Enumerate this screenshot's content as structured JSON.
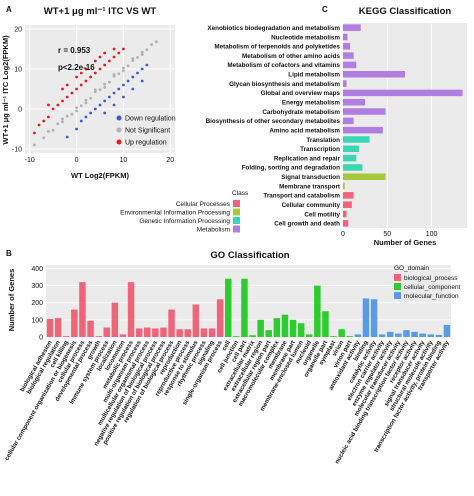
{
  "chart_data": [
    {
      "panel": "A",
      "type": "scatter",
      "title": "WT+1 μg ml⁻¹ ITC VS WT",
      "xlabel": "WT Log2(FPKM)",
      "ylabel": "WT+1 μg ml⁻¹ ITC Log2(FPKM)",
      "xlim": [
        -11,
        21
      ],
      "ylim": [
        -11,
        21
      ],
      "xticks": [
        "-10",
        "0",
        "10",
        "20"
      ],
      "yticks": [
        "-10",
        "0",
        "10",
        "20"
      ],
      "annotations": [
        "r = 0.953",
        "p<2.2e-16"
      ],
      "legend": [
        {
          "name": "Down regulation",
          "color": "#3b5bd6"
        },
        {
          "name": "Not Significant",
          "color": "#b0b0b0"
        },
        {
          "name": "Up regulation",
          "color": "#e02020"
        }
      ],
      "series": [
        {
          "name": "Not Significant",
          "color": "#b0b0b0",
          "points": [
            [
              -9,
              -9
            ],
            [
              -7,
              -7.2
            ],
            [
              -6,
              -5.6
            ],
            [
              -5,
              -5.3
            ],
            [
              -4,
              -3.7
            ],
            [
              -3,
              -3.2
            ],
            [
              -2,
              -1.8
            ],
            [
              -1,
              -1.3
            ],
            [
              0,
              0.3
            ],
            [
              1,
              0.8
            ],
            [
              2,
              2.2
            ],
            [
              3,
              2.7
            ],
            [
              4,
              4.3
            ],
            [
              5,
              4.8
            ],
            [
              6,
              6.2
            ],
            [
              7,
              6.7
            ],
            [
              8,
              8.2
            ],
            [
              9,
              8.8
            ],
            [
              10,
              10.2
            ],
            [
              11,
              10.8
            ],
            [
              12,
              12.1
            ],
            [
              13,
              12.9
            ],
            [
              14,
              14.2
            ],
            [
              15,
              14.8
            ],
            [
              16,
              16.1
            ],
            [
              17,
              16.8
            ],
            [
              -3,
              -2.5
            ],
            [
              0,
              -0.5
            ],
            [
              2,
              1.5
            ],
            [
              4,
              4.8
            ],
            [
              6,
              5.4
            ],
            [
              8,
              8.6
            ],
            [
              10,
              9.5
            ],
            [
              12,
              12.6
            ],
            [
              14,
              13.6
            ]
          ]
        },
        {
          "name": "Up regulation",
          "color": "#e02020",
          "points": [
            [
              -9,
              -6
            ],
            [
              -8,
              -4
            ],
            [
              -7,
              -3
            ],
            [
              -6,
              -2
            ],
            [
              -5,
              0
            ],
            [
              -4,
              1
            ],
            [
              -3,
              2
            ],
            [
              -2,
              3
            ],
            [
              -1,
              4
            ],
            [
              0,
              5
            ],
            [
              1,
              6
            ],
            [
              2,
              7
            ],
            [
              3,
              8
            ],
            [
              4,
              9
            ],
            [
              5,
              10
            ],
            [
              6,
              11
            ],
            [
              7,
              12
            ],
            [
              8,
              13
            ],
            [
              9,
              14
            ],
            [
              10,
              15
            ],
            [
              -2,
              6
            ],
            [
              0,
              8
            ],
            [
              2,
              10
            ],
            [
              4,
              12
            ],
            [
              6,
              14
            ],
            [
              -6,
              1
            ],
            [
              -3,
              5
            ],
            [
              1,
              9
            ],
            [
              5,
              13
            ],
            [
              8,
              15
            ]
          ]
        },
        {
          "name": "Down regulation",
          "color": "#3b5bd6",
          "points": [
            [
              -2,
              -7
            ],
            [
              0,
              -5
            ],
            [
              1,
              -3
            ],
            [
              2,
              -2
            ],
            [
              3,
              -1
            ],
            [
              4,
              0
            ],
            [
              5,
              1
            ],
            [
              6,
              2
            ],
            [
              7,
              3
            ],
            [
              8,
              4
            ],
            [
              9,
              5
            ],
            [
              10,
              6
            ],
            [
              11,
              7
            ],
            [
              12,
              8
            ],
            [
              13,
              9
            ],
            [
              14,
              10
            ],
            [
              15,
              11
            ],
            [
              6,
              -1
            ],
            [
              8,
              1
            ],
            [
              10,
              3
            ],
            [
              12,
              5
            ],
            [
              14,
              7
            ]
          ]
        }
      ]
    },
    {
      "panel": "C",
      "type": "bar",
      "orientation": "horizontal",
      "title": "KEGG Classification",
      "xlabel": "Number of Genes",
      "xlim": [
        0,
        140
      ],
      "xticks": [
        "0",
        "50",
        "100"
      ],
      "legend_title": "Class",
      "legend": [
        {
          "name": "Cellular Processes",
          "color": "#f0647a"
        },
        {
          "name": "Environmental Information Processing",
          "color": "#a8c83c"
        },
        {
          "name": "Genetic Information Processing",
          "color": "#3cd6b4"
        },
        {
          "name": "Metabolism",
          "color": "#b07ee0"
        }
      ],
      "categories": [
        "Xenobiotics biodegradation and metabolism",
        "Nucleotide metabolism",
        "Metabolism of terpenoids and polyketides",
        "Metabolism of other amino acids",
        "Metabolism of cofactors and vitamins",
        "Lipid metabolism",
        "Glycan biosynthesis and metabolism",
        "Global and overview maps",
        "Energy metabolism",
        "Carbohydrate metabolism",
        "Biosynthesis of other secondary metabolites",
        "Amino acid metabolism",
        "Translation",
        "Transcription",
        "Replication and repair",
        "Folding, sorting and degradation",
        "Signal transduction",
        "Membrane transport",
        "Transport and catabolism",
        "Cellular community",
        "Cell motility",
        "Cell growth and death"
      ],
      "values": [
        20,
        5,
        8,
        12,
        15,
        70,
        4,
        135,
        25,
        48,
        12,
        45,
        30,
        18,
        15,
        22,
        48,
        2,
        12,
        10,
        4,
        6
      ],
      "classes": [
        "Metabolism",
        "Metabolism",
        "Metabolism",
        "Metabolism",
        "Metabolism",
        "Metabolism",
        "Metabolism",
        "Metabolism",
        "Metabolism",
        "Metabolism",
        "Metabolism",
        "Metabolism",
        "Genetic Information Processing",
        "Genetic Information Processing",
        "Genetic Information Processing",
        "Genetic Information Processing",
        "Environmental Information Processing",
        "Environmental Information Processing",
        "Cellular Processes",
        "Cellular Processes",
        "Cellular Processes",
        "Cellular Processes"
      ]
    },
    {
      "panel": "B",
      "type": "bar",
      "title": "GO Classification",
      "ylabel": "Number of Genes",
      "ylim": [
        0,
        420
      ],
      "yticks": [
        "0",
        "100",
        "200",
        "300",
        "400"
      ],
      "legend_title": "GO_domain",
      "legend": [
        {
          "name": "biological_process",
          "color": "#f0647a"
        },
        {
          "name": "cellular_component",
          "color": "#2ecc2e"
        },
        {
          "name": "molecular_function",
          "color": "#5b9be6"
        }
      ],
      "categories": [
        "biological adhesion",
        "biological regulation",
        "cell killing",
        "cellular component organization or biogenesis",
        "cellular process",
        "developmental process",
        "growth",
        "immune system process",
        "localization",
        "locomotion",
        "metabolic process",
        "multi-organism process",
        "multicellular organismal process",
        "negative regulation of biological process",
        "positive regulation of biological process",
        "regulation of biological process",
        "reproduction",
        "reproductive process",
        "response to stimulus",
        "rhythmic process",
        "signaling",
        "single-organism process",
        "cell",
        "cell junction",
        "cell part",
        "extracellular matrix",
        "extracellular region",
        "extracellular region part",
        "macromolecular complex",
        "membrane",
        "membrane part",
        "membrane-enclosed lumen",
        "nucleoid",
        "organelle",
        "organelle part",
        "symplast",
        "virion",
        "virion part",
        "antioxidant activity",
        "binding",
        "catalytic activity",
        "electron carrier activity",
        "enzyme regulator activity",
        "molecular transducer activity",
        "nucleic acid binding transcription factor activity",
        "receptor activity",
        "signal transducer activity",
        "structural molecule activity",
        "transcription factor activity, protein binding",
        "transporter activity"
      ],
      "values": [
        105,
        110,
        5,
        160,
        320,
        95,
        5,
        55,
        200,
        15,
        320,
        50,
        55,
        50,
        55,
        160,
        45,
        45,
        190,
        50,
        50,
        220,
        340,
        5,
        340,
        10,
        100,
        40,
        110,
        130,
        100,
        80,
        15,
        300,
        150,
        5,
        45,
        5,
        15,
        225,
        220,
        15,
        30,
        20,
        40,
        30,
        20,
        15,
        12,
        70
      ],
      "domains": [
        "biological_process",
        "biological_process",
        "biological_process",
        "biological_process",
        "biological_process",
        "biological_process",
        "biological_process",
        "biological_process",
        "biological_process",
        "biological_process",
        "biological_process",
        "biological_process",
        "biological_process",
        "biological_process",
        "biological_process",
        "biological_process",
        "biological_process",
        "biological_process",
        "biological_process",
        "biological_process",
        "biological_process",
        "biological_process",
        "cellular_component",
        "cellular_component",
        "cellular_component",
        "cellular_component",
        "cellular_component",
        "cellular_component",
        "cellular_component",
        "cellular_component",
        "cellular_component",
        "cellular_component",
        "cellular_component",
        "cellular_component",
        "cellular_component",
        "cellular_component",
        "cellular_component",
        "cellular_component",
        "molecular_function",
        "molecular_function",
        "molecular_function",
        "molecular_function",
        "molecular_function",
        "molecular_function",
        "molecular_function",
        "molecular_function",
        "molecular_function",
        "molecular_function",
        "molecular_function",
        "molecular_function"
      ]
    }
  ]
}
